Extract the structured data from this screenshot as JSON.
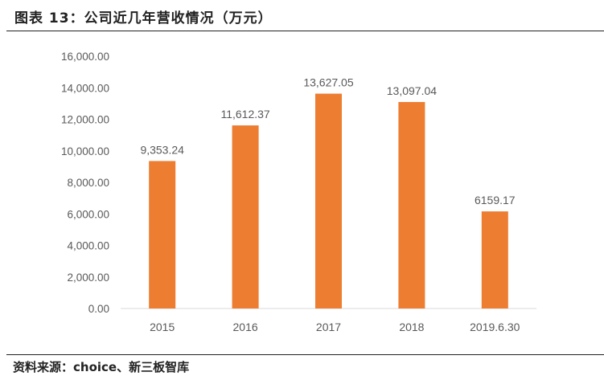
{
  "title": "图表 13：公司近几年营收情况（万元）",
  "source": "资料来源：choice、新三板智库",
  "chart_data": {
    "type": "bar",
    "categories": [
      "2015",
      "2016",
      "2017",
      "2018",
      "2019.6.30"
    ],
    "values": [
      9353.24,
      11612.37,
      13627.05,
      13097.04,
      6159.17
    ],
    "data_labels": [
      "9,353.24",
      "11,612.37",
      "13,627.05",
      "13,097.04",
      "6159.17"
    ],
    "yticks": [
      "0.00",
      "2,000.00",
      "4,000.00",
      "6,000.00",
      "8,000.00",
      "10,000.00",
      "12,000.00",
      "14,000.00",
      "16,000.00"
    ],
    "ylim": [
      0,
      16000
    ],
    "grid": false,
    "bar_color": "#ED7D31",
    "xlabel": "",
    "ylabel": ""
  }
}
